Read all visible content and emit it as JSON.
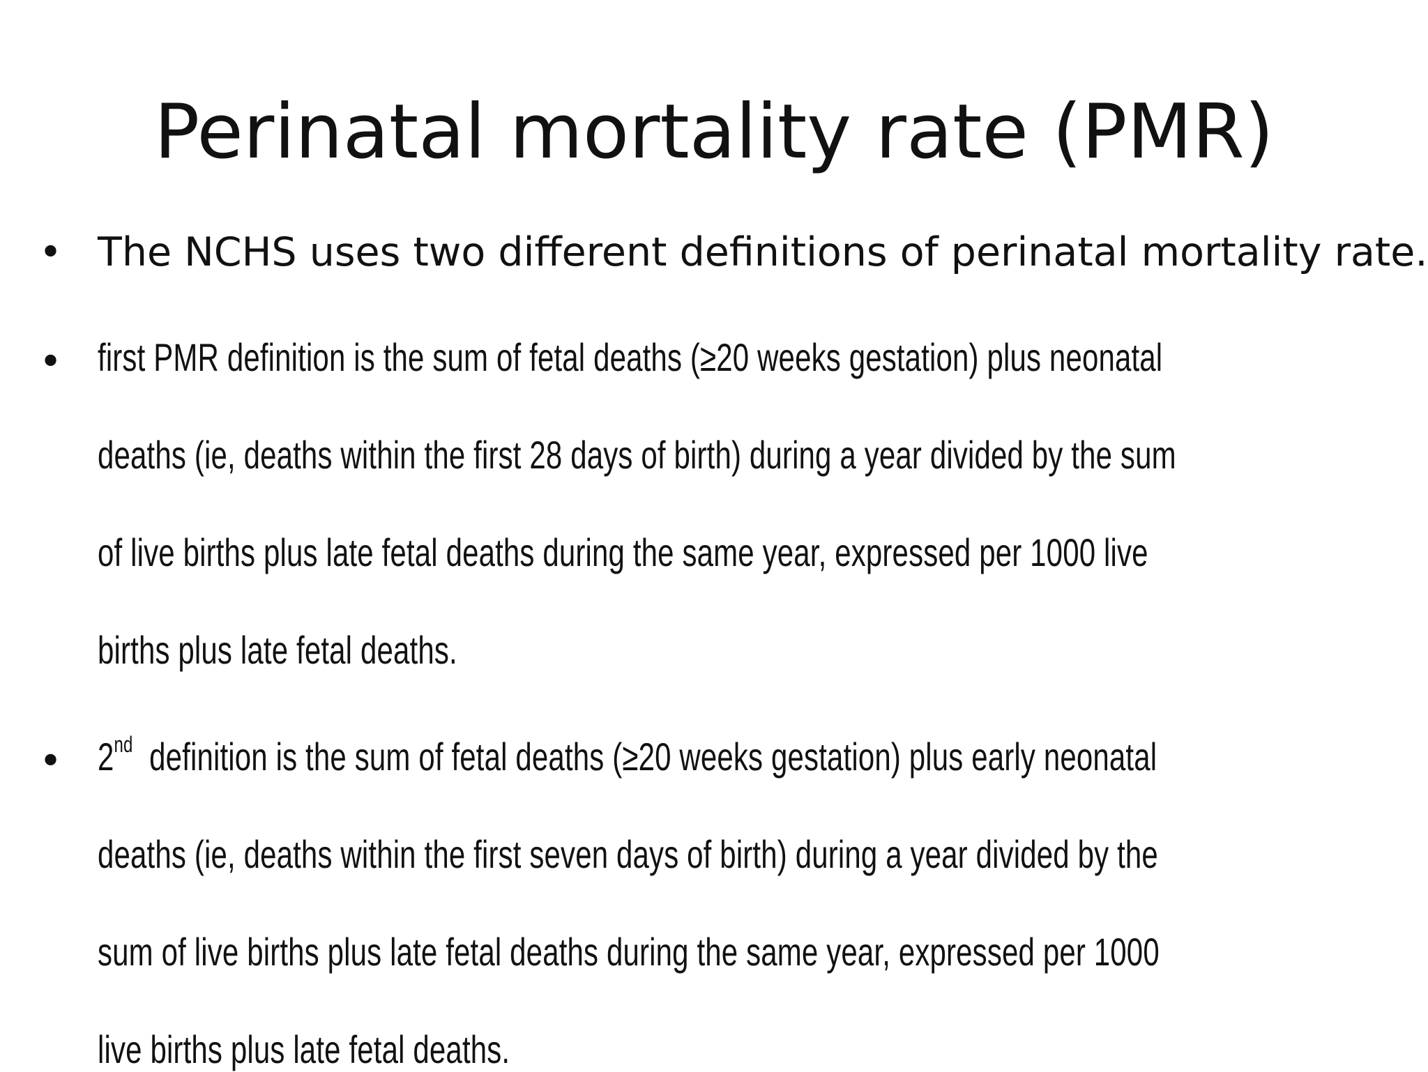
{
  "slide": {
    "title": "Perinatal mortality rate (PMR)",
    "bullets": [
      {
        "marker": "•",
        "lines": [
          "The NCHS uses two different definitions of perinatal mortality rate."
        ]
      },
      {
        "marker": "•",
        "lines": [
          " first PMR definition is the sum of fetal deaths (≥20 weeks gestation) plus neonatal",
          "deaths (ie, deaths within the first 28 days of birth) during a year divided by the sum",
          "of live births plus late fetal deaths during the same year, expressed per 1000 live",
          "births plus late fetal deaths."
        ]
      },
      {
        "marker": "•",
        "ordinal_number": "2",
        "ordinal_suffix": "nd",
        "lines": [
          "  definition is the sum of fetal deaths (≥20 weeks gestation) plus early neonatal",
          "deaths (ie, deaths within the first seven days of birth) during a year divided by the",
          "sum of live births plus late fetal deaths during the same year, expressed per 1000",
          "live births plus late fetal deaths."
        ]
      }
    ]
  }
}
